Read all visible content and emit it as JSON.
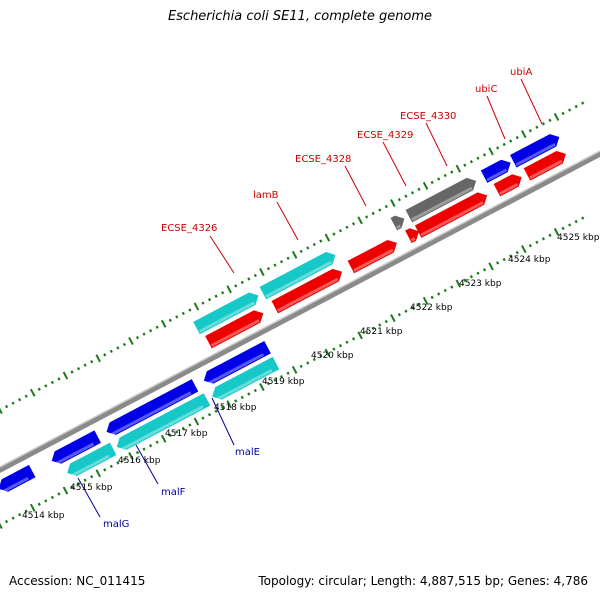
{
  "title": "Escherichia coli SE11, complete genome",
  "accession_text": "Accession: NC_011415",
  "topology_text": "Topology: circular; Length: 4,887,515 bp; Genes: 4,786",
  "colors": {
    "backbone": "#888888",
    "tick": "#1b7a1b",
    "blue_gene": "#0000e6",
    "cyan_gene": "#17c8c8",
    "red_gene": "#ee0000",
    "gray_gene": "#666666",
    "forward_label": "#cc0000",
    "reverse_label": "#000099"
  },
  "tick_labels": [
    "4514 kbp",
    "4515 kbp",
    "4516 kbp",
    "4517 kbp",
    "4518 kbp",
    "4519 kbp",
    "4520 kbp",
    "4521 kbp",
    "4522 kbp",
    "4523 kbp",
    "4524 kbp",
    "4525 kbp"
  ],
  "gene_labels": [
    {
      "text": "ECSE_4326",
      "strand": "forward"
    },
    {
      "text": "lamB",
      "strand": "forward"
    },
    {
      "text": "ECSE_4328",
      "strand": "forward"
    },
    {
      "text": "ECSE_4329",
      "strand": "forward"
    },
    {
      "text": "ECSE_4330",
      "strand": "forward"
    },
    {
      "text": "ubiC",
      "strand": "forward"
    },
    {
      "text": "ubiA",
      "strand": "forward"
    },
    {
      "text": "malE",
      "strand": "reverse"
    },
    {
      "text": "malF",
      "strand": "reverse"
    },
    {
      "text": "malG",
      "strand": "reverse"
    }
  ]
}
